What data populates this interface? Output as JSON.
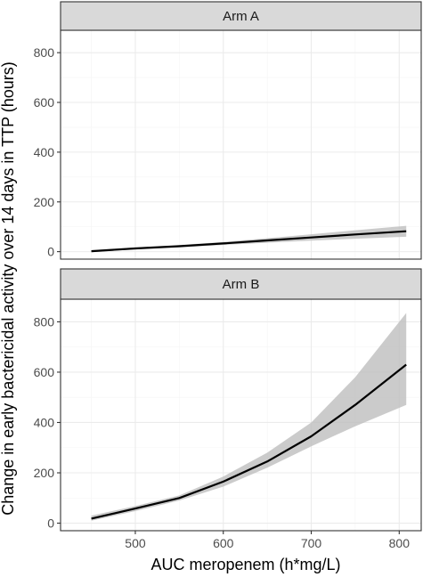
{
  "chart_data": {
    "type": "line",
    "xlabel": "AUC meropenem (h*mg/L)",
    "ylabel": "Change in early bactericidal activity over 14 days in TTP (hours)",
    "xlim": [
      415,
      825
    ],
    "ylim": [
      -30,
      890
    ],
    "x_ticks": [
      500,
      600,
      700,
      800
    ],
    "y_ticks": [
      0,
      200,
      400,
      600,
      800
    ],
    "grid": true,
    "colors": {
      "line": "#000000",
      "ribbon": "#bebebe",
      "strip": "#d9d9d9",
      "grid_major": "#ebebeb",
      "grid_minor": "#f5f5f5"
    },
    "panels": [
      {
        "label": "Arm A",
        "x": [
          450,
          500,
          550,
          600,
          650,
          700,
          750,
          808
        ],
        "y": [
          2,
          13,
          22,
          33,
          45,
          57,
          69,
          82
        ],
        "lower": [
          -2,
          9,
          17,
          27,
          36,
          44,
          52,
          60
        ],
        "upper": [
          6,
          17,
          27,
          39,
          54,
          70,
          86,
          104
        ]
      },
      {
        "label": "Arm B",
        "x": [
          450,
          500,
          550,
          600,
          650,
          700,
          750,
          808
        ],
        "y": [
          18,
          58,
          100,
          165,
          245,
          345,
          470,
          630
        ],
        "lower": [
          10,
          48,
          90,
          145,
          220,
          305,
          385,
          470
        ],
        "upper": [
          30,
          68,
          110,
          185,
          280,
          400,
          580,
          835
        ]
      }
    ]
  }
}
